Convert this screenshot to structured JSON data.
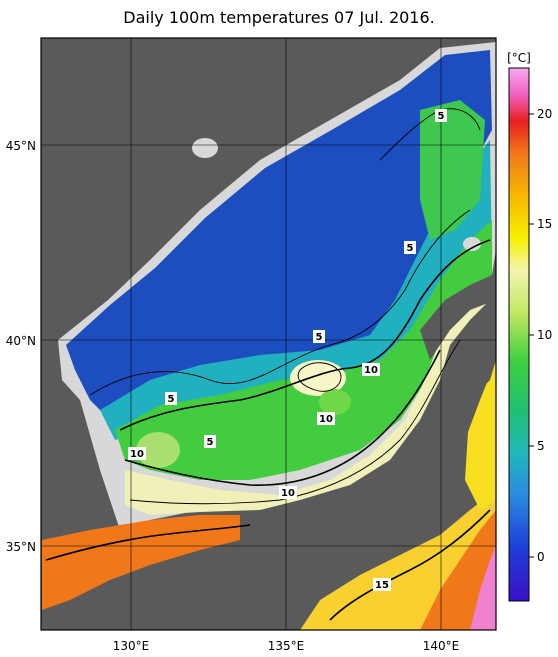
{
  "title": "Daily 100m temperatures 07 Jul. 2016.",
  "map": {
    "lon_ticks": [
      "130°E",
      "135°E",
      "140°E"
    ],
    "lat_ticks": [
      "45°N",
      "40°N",
      "35°N"
    ],
    "contour_labels": [
      "5",
      "5",
      "5",
      "5",
      "5",
      "10",
      "10",
      "10",
      "10",
      "15"
    ]
  },
  "colorbar": {
    "unit": "[°C]",
    "ticks": [
      "20",
      "15",
      "10",
      "5",
      "0"
    ]
  },
  "colors": {
    "land": "#5a5a5a",
    "nodata": "#d8d8d8",
    "cold": "#1a44b8",
    "warm": "#f07818"
  }
}
